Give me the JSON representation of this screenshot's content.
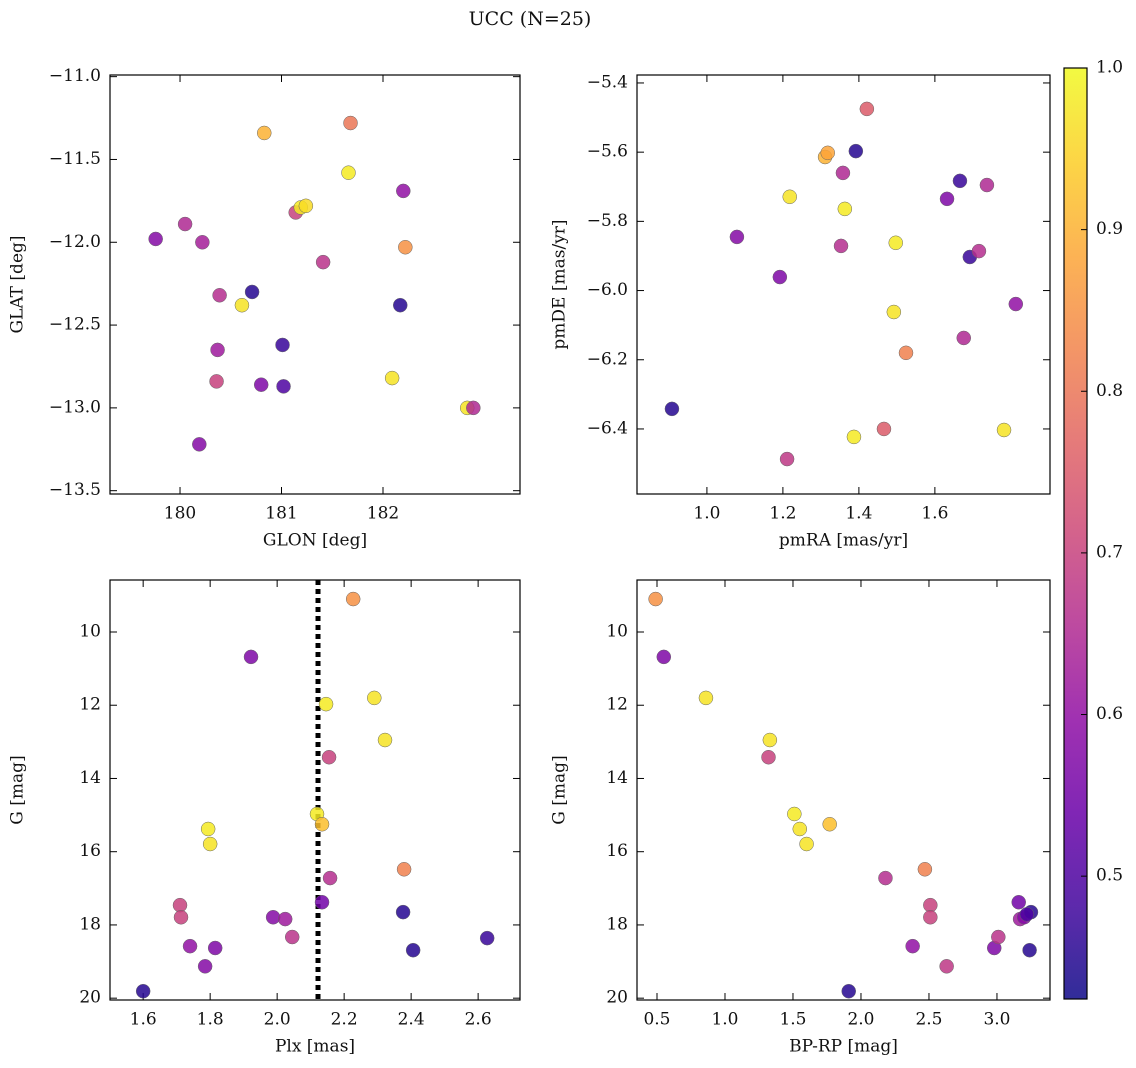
{
  "title": "UCC (N=25)",
  "colorbar": {
    "colormap": "plasma",
    "clim": [
      0.424,
      1.0
    ],
    "ticks": [
      0.5,
      0.6,
      0.7,
      0.8,
      0.9,
      {
        "value": 1.0,
        "label": "1.0"
      }
    ]
  },
  "chart_data": [
    {
      "type": "scatter",
      "xlabel": "GLON [deg]",
      "ylabel": "GLAT [deg]",
      "xlim": [
        179.31,
        183.35
      ],
      "ylim": [
        -13.52,
        -10.99
      ],
      "xticks": [
        180,
        181,
        182
      ],
      "yticks": [
        {
          "value": -11.0,
          "label": "−11.0"
        },
        {
          "value": -11.5,
          "label": "−11.5"
        },
        {
          "value": -12.0,
          "label": "−12.0"
        },
        {
          "value": -12.5,
          "label": "−12.5"
        },
        {
          "value": -13.0,
          "label": "−13.0"
        },
        {
          "value": -13.5,
          "label": "−13.5"
        }
      ],
      "x": [
        179.76,
        180.05,
        180.22,
        180.39,
        180.37,
        180.36,
        180.19,
        180.61,
        180.71,
        180.8,
        180.83,
        181.01,
        181.02,
        181.14,
        181.19,
        181.24,
        181.41,
        181.66,
        181.68,
        182.09,
        182.17,
        182.2,
        182.22,
        182.83,
        182.89
      ],
      "y": [
        -11.98,
        -11.89,
        -12.0,
        -12.32,
        -12.65,
        -12.84,
        -13.22,
        -12.38,
        -12.3,
        -12.86,
        -11.34,
        -12.62,
        -12.87,
        -11.82,
        -11.79,
        -11.78,
        -12.12,
        -11.58,
        -11.28,
        -12.82,
        -12.38,
        -11.69,
        -12.03,
        -13.0,
        -13.0
      ],
      "c": [
        0.58,
        0.65,
        0.63,
        0.66,
        0.62,
        0.7,
        0.58,
        0.97,
        0.45,
        0.57,
        0.9,
        0.47,
        0.5,
        0.7,
        0.98,
        0.96,
        0.67,
        0.98,
        0.8,
        0.97,
        0.45,
        0.6,
        0.85,
        0.97,
        0.65
      ]
    },
    {
      "type": "scatter",
      "xlabel": "pmRA [mas/yr]",
      "ylabel": "pmDE [mas/yr]",
      "xlim": [
        0.816,
        1.903
      ],
      "ylim": [
        -6.588,
        -5.377
      ],
      "xticks": [
        {
          "value": 1.0,
          "label": "1.0"
        },
        1.2,
        1.4,
        1.6
      ],
      "yticks": [
        {
          "value": -5.4,
          "label": "−5.4"
        },
        {
          "value": -5.6,
          "label": "−5.6"
        },
        {
          "value": -5.8,
          "label": "−5.8"
        },
        {
          "value": -6.0,
          "label": "−6.0"
        },
        {
          "value": -6.2,
          "label": "−6.2"
        },
        {
          "value": -6.4,
          "label": "−6.4"
        }
      ],
      "x": [
        0.908,
        1.079,
        1.192,
        1.211,
        1.218,
        1.311,
        1.318,
        1.392,
        1.358,
        1.353,
        1.363,
        1.387,
        1.421,
        1.466,
        1.497,
        1.492,
        1.524,
        1.632,
        1.666,
        1.676,
        1.692,
        1.716,
        1.737,
        1.782,
        1.813
      ],
      "y": [
        -6.342,
        -5.845,
        -5.961,
        -6.487,
        -5.729,
        -5.614,
        -5.602,
        -5.597,
        -5.66,
        -5.871,
        -5.764,
        -6.423,
        -5.475,
        -6.4,
        -5.862,
        -6.062,
        -6.18,
        -5.735,
        -5.683,
        -6.137,
        -5.903,
        -5.886,
        -5.695,
        -6.403,
        -6.039
      ],
      "c": [
        0.45,
        0.58,
        0.57,
        0.68,
        0.97,
        0.9,
        0.88,
        0.45,
        0.65,
        0.66,
        0.98,
        0.98,
        0.75,
        0.75,
        0.98,
        0.97,
        0.82,
        0.57,
        0.47,
        0.65,
        0.47,
        0.66,
        0.65,
        0.97,
        0.6
      ]
    },
    {
      "type": "scatter",
      "xlabel": "Plx [mas]",
      "ylabel": "G [mag]",
      "xlim": [
        1.501,
        2.725
      ],
      "ylim": [
        20.05,
        8.58
      ],
      "vline": 2.122,
      "xticks": [
        1.6,
        1.8,
        {
          "value": 2.0,
          "label": "2.0"
        },
        2.2,
        2.4,
        2.6
      ],
      "yticks": [
        10,
        12,
        14,
        16,
        18,
        20
      ],
      "x": [
        1.6,
        1.71,
        1.713,
        1.74,
        1.785,
        1.815,
        1.794,
        1.8,
        1.922,
        1.988,
        2.024,
        2.045,
        2.119,
        2.134,
        2.134,
        2.146,
        2.155,
        2.158,
        2.227,
        2.29,
        2.322,
        2.376,
        2.379,
        2.406,
        2.627
      ],
      "y": [
        19.81,
        17.46,
        17.79,
        18.58,
        19.13,
        18.63,
        15.38,
        15.79,
        10.68,
        17.79,
        17.84,
        18.33,
        14.97,
        15.25,
        17.38,
        11.97,
        13.42,
        16.72,
        9.1,
        11.8,
        12.95,
        17.65,
        16.48,
        18.69,
        18.36
      ],
      "c": [
        0.45,
        0.7,
        0.7,
        0.6,
        0.58,
        0.57,
        0.98,
        0.97,
        0.57,
        0.58,
        0.62,
        0.67,
        0.98,
        0.92,
        0.55,
        0.98,
        0.7,
        0.66,
        0.85,
        0.97,
        0.97,
        0.45,
        0.82,
        0.45,
        0.47
      ]
    },
    {
      "type": "scatter",
      "xlabel": "BP-RP [mag]",
      "ylabel": "G [mag]",
      "xlim": [
        0.353,
        3.39
      ],
      "ylim": [
        20.05,
        8.58
      ],
      "xticks": [
        0.5,
        {
          "value": 1.0,
          "label": "1.0"
        },
        1.5,
        {
          "value": 2.0,
          "label": "2.0"
        },
        2.5,
        {
          "value": 3.0,
          "label": "3.0"
        }
      ],
      "yticks": [
        10,
        12,
        14,
        16,
        18,
        20
      ],
      "x": [
        0.49,
        0.55,
        0.86,
        1.33,
        1.32,
        1.51,
        1.55,
        1.6,
        1.77,
        1.91,
        2.18,
        2.38,
        2.47,
        2.51,
        2.51,
        2.63,
        2.98,
        3.01,
        3.16,
        3.17,
        3.2,
        3.25,
        3.24,
        3.22
      ],
      "y": [
        9.1,
        10.68,
        11.8,
        12.95,
        13.42,
        14.97,
        15.38,
        15.79,
        15.25,
        19.81,
        16.72,
        18.58,
        16.48,
        17.46,
        17.79,
        19.13,
        18.63,
        18.33,
        17.38,
        17.84,
        17.79,
        17.65,
        18.69,
        17.71
      ],
      "c": [
        0.85,
        0.57,
        0.97,
        0.97,
        0.7,
        0.98,
        0.97,
        0.97,
        0.92,
        0.45,
        0.66,
        0.6,
        0.82,
        0.7,
        0.7,
        0.68,
        0.57,
        0.67,
        0.55,
        0.62,
        0.58,
        0.45,
        0.45,
        0.5
      ]
    }
  ]
}
